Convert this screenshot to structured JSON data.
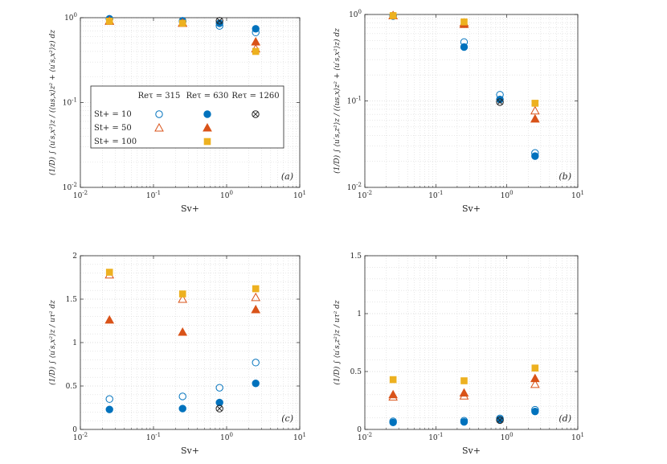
{
  "colors": {
    "blue": "#0072BD",
    "orange": "#D95319",
    "yellow": "#EDB120",
    "black": "#262626",
    "grid": "#d9d9d9"
  },
  "chart_data": [
    {
      "type": "scatter",
      "panel_label": "(a)",
      "xlabel": "Sv+",
      "ylabel": "(1/D) ∫ ⟨u′s,x²⟩z / (⟨us,x⟩z² + ⟨u′s,x²⟩z) dz",
      "xscale": "log",
      "yscale": "log",
      "xlim": [
        0.01,
        10
      ],
      "ylim": [
        0.01,
        1
      ],
      "xticks": [
        0.01,
        0.1,
        1,
        10
      ],
      "xticklabels": [
        "10^-2",
        "10^-1",
        "10^0",
        "10^1"
      ],
      "yticks": [
        0.01,
        0.1,
        1
      ],
      "yticklabels": [
        "10^-2",
        "10^-1",
        "10^0"
      ],
      "series": [
        {
          "name": "St+=10, Re=315",
          "marker": "circle-open",
          "color": "blue",
          "x": [
            0.025,
            0.25,
            0.8,
            2.5
          ],
          "y": [
            0.97,
            0.9,
            0.8,
            0.67
          ]
        },
        {
          "name": "St+=10, Re=630",
          "marker": "circle-filled",
          "color": "blue",
          "x": [
            0.025,
            0.25,
            0.8,
            2.5
          ],
          "y": [
            0.97,
            0.92,
            0.86,
            0.74
          ]
        },
        {
          "name": "St+=10, Re=1260",
          "marker": "circle-cross",
          "color": "black",
          "x": [
            0.8
          ],
          "y": [
            0.92
          ]
        },
        {
          "name": "St+=50, Re=315",
          "marker": "triangle-open",
          "color": "orange",
          "x": [
            0.025,
            0.25,
            2.5
          ],
          "y": [
            0.91,
            0.86,
            0.43
          ]
        },
        {
          "name": "St+=50, Re=630",
          "marker": "triangle-filled",
          "color": "orange",
          "x": [
            0.025,
            0.25,
            2.5
          ],
          "y": [
            0.92,
            0.87,
            0.52
          ]
        },
        {
          "name": "St+=100, Re=630",
          "marker": "square-filled",
          "color": "yellow",
          "x": [
            0.025,
            0.25,
            2.5
          ],
          "y": [
            0.91,
            0.86,
            0.4
          ]
        }
      ],
      "legend": {
        "headers": [
          "Re",
          "τ",
          "= 315",
          "= 630",
          "= 1260"
        ],
        "col_headers": [
          "Reτ = 315",
          "Reτ = 630",
          "Reτ = 1260"
        ],
        "row_labels": [
          "St+ = 10",
          "St+ = 50",
          "St+ = 100"
        ]
      }
    },
    {
      "type": "scatter",
      "panel_label": "(b)",
      "xlabel": "Sv+",
      "ylabel": "(1/D) ∫ ⟨u′s,z²⟩z / (⟨us,x⟩z² + ⟨u′s,x²⟩z) dz",
      "xscale": "log",
      "yscale": "log",
      "xlim": [
        0.01,
        10
      ],
      "ylim": [
        0.01,
        1
      ],
      "xticks": [
        0.01,
        0.1,
        1,
        10
      ],
      "xticklabels": [
        "10^-2",
        "10^-1",
        "10^0",
        "10^1"
      ],
      "yticks": [
        0.01,
        0.1,
        1
      ],
      "yticklabels": [
        "10^-2",
        "10^-1",
        "10^0"
      ],
      "series": [
        {
          "name": "St+=10, Re=315",
          "marker": "circle-open",
          "color": "blue",
          "x": [
            0.025,
            0.25,
            0.8,
            2.5
          ],
          "y": [
            0.97,
            0.48,
            0.118,
            0.025
          ]
        },
        {
          "name": "St+=10, Re=630",
          "marker": "circle-filled",
          "color": "blue",
          "x": [
            0.025,
            0.25,
            0.8,
            2.5
          ],
          "y": [
            0.96,
            0.42,
            0.104,
            0.023
          ]
        },
        {
          "name": "St+=10, Re=1260",
          "marker": "circle-cross",
          "color": "black",
          "x": [
            0.8
          ],
          "y": [
            0.097
          ]
        },
        {
          "name": "St+=50, Re=315",
          "marker": "triangle-open",
          "color": "orange",
          "x": [
            0.025,
            0.25,
            2.5
          ],
          "y": [
            0.97,
            0.8,
            0.077
          ]
        },
        {
          "name": "St+=50, Re=630",
          "marker": "triangle-filled",
          "color": "orange",
          "x": [
            0.025,
            0.25,
            2.5
          ],
          "y": [
            0.97,
            0.77,
            0.062
          ]
        },
        {
          "name": "St+=100, Re=630",
          "marker": "square-filled",
          "color": "yellow",
          "x": [
            0.025,
            0.25,
            2.5
          ],
          "y": [
            0.97,
            0.82,
            0.094
          ]
        }
      ]
    },
    {
      "type": "scatter",
      "panel_label": "(c)",
      "xlabel": "Sv+",
      "ylabel": "(1/D) ∫ ⟨u′s,x²⟩z / uτ² dz",
      "xscale": "log",
      "yscale": "linear",
      "xlim": [
        0.01,
        10
      ],
      "ylim": [
        0,
        2
      ],
      "xticks": [
        0.01,
        0.1,
        1,
        10
      ],
      "xticklabels": [
        "10^-2",
        "10^-1",
        "10^0",
        "10^1"
      ],
      "yticks": [
        0,
        0.5,
        1,
        1.5,
        2
      ],
      "yticklabels": [
        "0",
        "0.5",
        "1",
        "1.5",
        "2"
      ],
      "series": [
        {
          "name": "St+=10, Re=315",
          "marker": "circle-open",
          "color": "blue",
          "x": [
            0.025,
            0.25,
            0.8,
            2.5
          ],
          "y": [
            0.35,
            0.38,
            0.48,
            0.77
          ]
        },
        {
          "name": "St+=10, Re=630",
          "marker": "circle-filled",
          "color": "blue",
          "x": [
            0.025,
            0.25,
            0.8,
            2.5
          ],
          "y": [
            0.23,
            0.24,
            0.31,
            0.53
          ]
        },
        {
          "name": "St+=10, Re=1260",
          "marker": "circle-cross",
          "color": "black",
          "x": [
            0.8
          ],
          "y": [
            0.24
          ]
        },
        {
          "name": "St+=50, Re=315",
          "marker": "triangle-open",
          "color": "orange",
          "x": [
            0.025,
            0.25,
            2.5
          ],
          "y": [
            1.78,
            1.5,
            1.52
          ]
        },
        {
          "name": "St+=50, Re=630",
          "marker": "triangle-filled",
          "color": "orange",
          "x": [
            0.025,
            0.25,
            2.5
          ],
          "y": [
            1.26,
            1.12,
            1.38
          ]
        },
        {
          "name": "St+=100, Re=630",
          "marker": "square-filled",
          "color": "yellow",
          "x": [
            0.025,
            0.25,
            2.5
          ],
          "y": [
            1.81,
            1.56,
            1.62
          ]
        }
      ]
    },
    {
      "type": "scatter",
      "panel_label": "(d)",
      "xlabel": "Sv+",
      "ylabel": "(1/D) ∫ ⟨u′s,z²⟩z / uτ² dz",
      "xscale": "log",
      "yscale": "linear",
      "xlim": [
        0.01,
        10
      ],
      "ylim": [
        0,
        1.5
      ],
      "xticks": [
        0.01,
        0.1,
        1,
        10
      ],
      "xticklabels": [
        "10^-2",
        "10^-1",
        "10^0",
        "10^1"
      ],
      "yticks": [
        0,
        0.5,
        1,
        1.5
      ],
      "yticklabels": [
        "0",
        "0.5",
        "1",
        "1.5"
      ],
      "series": [
        {
          "name": "St+=10, Re=315",
          "marker": "circle-open",
          "color": "blue",
          "x": [
            0.025,
            0.25,
            0.8,
            2.5
          ],
          "y": [
            0.07,
            0.075,
            0.095,
            0.17
          ]
        },
        {
          "name": "St+=10, Re=630",
          "marker": "circle-filled",
          "color": "blue",
          "x": [
            0.025,
            0.25,
            0.8,
            2.5
          ],
          "y": [
            0.06,
            0.065,
            0.085,
            0.155
          ]
        },
        {
          "name": "St+=10, Re=1260",
          "marker": "circle-cross",
          "color": "black",
          "x": [
            0.8
          ],
          "y": [
            0.08
          ]
        },
        {
          "name": "St+=50, Re=315",
          "marker": "triangle-open",
          "color": "orange",
          "x": [
            0.025,
            0.25,
            2.5
          ],
          "y": [
            0.28,
            0.29,
            0.39
          ]
        },
        {
          "name": "St+=50, Re=630",
          "marker": "triangle-filled",
          "color": "orange",
          "x": [
            0.025,
            0.25,
            2.5
          ],
          "y": [
            0.3,
            0.315,
            0.44
          ]
        },
        {
          "name": "St+=100, Re=630",
          "marker": "square-filled",
          "color": "yellow",
          "x": [
            0.025,
            0.25,
            2.5
          ],
          "y": [
            0.43,
            0.42,
            0.53
          ]
        }
      ]
    }
  ]
}
